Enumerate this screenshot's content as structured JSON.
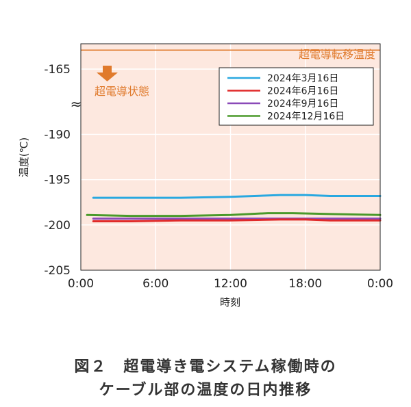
{
  "chart_data": {
    "type": "line",
    "ylabel": "温度(℃)",
    "xlabel": "時刻",
    "x_ticks": [
      "0:00",
      "6:00",
      "12:00",
      "18:00",
      "0:00"
    ],
    "y_ticks": [
      "-165",
      "-190",
      "-195",
      "-200",
      "-205"
    ],
    "y_axis_break": true,
    "ylim": [
      -205,
      -188
    ],
    "upper_ylim": [
      -167,
      -163
    ],
    "grid": true,
    "legend_position": "top-right",
    "annotations": {
      "threshold_label": "超電導転移温度",
      "threshold_value": -163.5,
      "state_label": "超電導状態"
    },
    "series": [
      {
        "name": "2024年3月16日",
        "color": "#29a8e0",
        "x": [
          1,
          4,
          8,
          12,
          16,
          18,
          20,
          24
        ],
        "y": [
          -197.0,
          -197.0,
          -197.0,
          -196.9,
          -196.7,
          -196.7,
          -196.8,
          -196.8
        ]
      },
      {
        "name": "2024年6月16日",
        "color": "#e02a2a",
        "x": [
          1,
          4,
          8,
          12,
          16,
          18,
          20,
          24
        ],
        "y": [
          -199.6,
          -199.6,
          -199.5,
          -199.5,
          -199.4,
          -199.4,
          -199.5,
          -199.5
        ]
      },
      {
        "name": "2024年9月16日",
        "color": "#8a4ab8",
        "x": [
          1,
          4,
          8,
          12,
          16,
          18,
          20,
          24
        ],
        "y": [
          -199.3,
          -199.3,
          -199.3,
          -199.3,
          -199.3,
          -199.3,
          -199.3,
          -199.3
        ]
      },
      {
        "name": "2024年12月16日",
        "color": "#4a9a2a",
        "x": [
          0.5,
          4,
          8,
          12,
          15,
          17,
          20,
          24
        ],
        "y": [
          -198.9,
          -199.0,
          -199.0,
          -198.9,
          -198.7,
          -198.7,
          -198.8,
          -198.9
        ]
      }
    ]
  },
  "colors": {
    "plot_bg": "#fde8df",
    "threshold": "#e07a2c"
  },
  "caption": {
    "line1": "図２　超電導き電システム稼働時の",
    "line2": "ケーブル部の温度の日内推移"
  }
}
